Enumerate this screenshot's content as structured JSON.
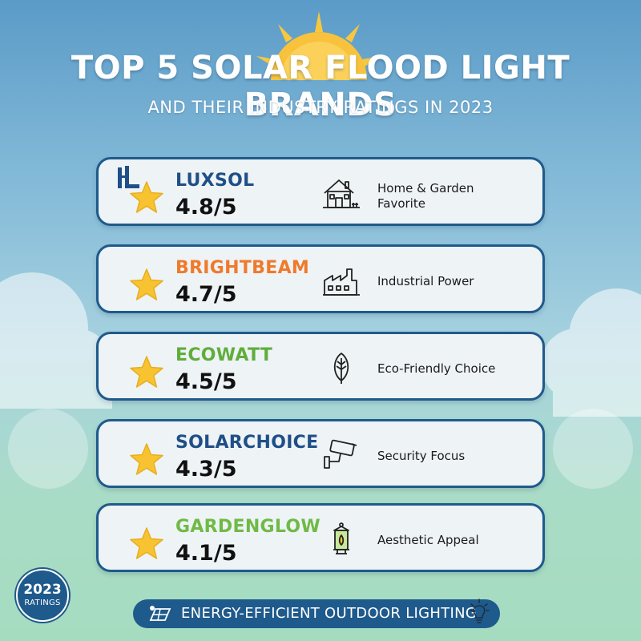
{
  "title": "TOP 5 SOLAR FLOOD LIGHT BRANDS",
  "subtitle": "AND THEIR INDUSTRY RATINGS IN 2023",
  "colors": {
    "navy": "#1f5a8c",
    "star": "#f7c331",
    "sun": "#f8c740"
  },
  "brands": [
    {
      "name": "LUXSOL",
      "rating": "4.8/5",
      "category": "Home & Garden Favorite",
      "icon": "house-icon",
      "color": "#1f4f87"
    },
    {
      "name": "BRIGHTBEAM",
      "rating": "4.7/5",
      "category": "Industrial Power",
      "icon": "factory-icon",
      "color": "#ef7a2b"
    },
    {
      "name": "ECOWATT",
      "rating": "4.5/5",
      "category": "Eco-Friendly Choice",
      "icon": "leaf-icon",
      "color": "#5fae3c"
    },
    {
      "name": "SOLARCHOICE",
      "rating": "4.3/5",
      "category": "Security Focus",
      "icon": "security-camera-icon",
      "color": "#1f4f87"
    },
    {
      "name": "GARDENGLOW",
      "rating": "4.1/5",
      "category": "Aesthetic Appeal",
      "icon": "lantern-icon",
      "color": "#6fba45"
    }
  ],
  "badge": {
    "year": "2023",
    "text": "RATINGS"
  },
  "footer": {
    "text": "ENERGY-EFFICIENT OUTDOOR LIGHTING"
  }
}
